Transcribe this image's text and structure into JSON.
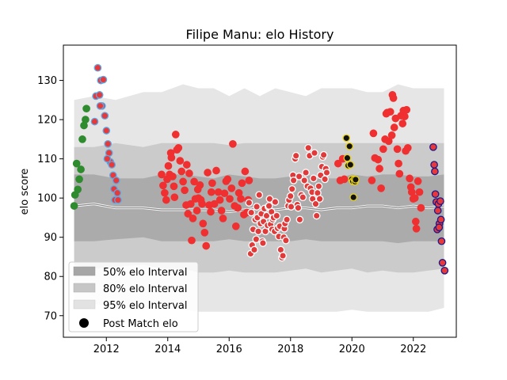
{
  "chart_data": {
    "type": "scatter",
    "title": "Filipe Manu: elo History",
    "xlabel": "",
    "ylabel": "elo score",
    "xlim": [
      2010.6,
      2023.4
    ],
    "ylim": [
      64.5,
      139
    ],
    "x_ticks": [
      2012,
      2014,
      2016,
      2018,
      2020,
      2022
    ],
    "y_ticks": [
      70,
      80,
      90,
      100,
      110,
      120,
      130
    ],
    "grid": false,
    "legend_position": "lower-left",
    "legend": [
      {
        "label": "50% elo Interval",
        "color": "#a6a6a6"
      },
      {
        "label": "80% elo Interval",
        "color": "#c6c6c6"
      },
      {
        "label": "95% elo Interval",
        "color": "#e2e2e2"
      },
      {
        "label": "Post Match elo",
        "color": "#000000"
      }
    ],
    "intervals": {
      "x": [
        2010.95,
        2011.6,
        2012.3,
        2013.2,
        2013.8,
        2014.5,
        2015.0,
        2015.5,
        2016.0,
        2016.5,
        2017.0,
        2017.5,
        2018.0,
        2018.5,
        2019.0,
        2019.5,
        2020.0,
        2020.5,
        2021.0,
        2021.5,
        2022.0,
        2022.5,
        2023.0
      ],
      "median": [
        98,
        98.5,
        97.5,
        97.5,
        97,
        97,
        97,
        97,
        96.5,
        97,
        97.5,
        97,
        97.5,
        97.5,
        97,
        97.5,
        97.5,
        98,
        98,
        97.5,
        98,
        97.5,
        98
      ],
      "p50_low": [
        89,
        89,
        89.5,
        90,
        89,
        89,
        89,
        89,
        89.5,
        89,
        89,
        89,
        89,
        89.5,
        89,
        89,
        89,
        89,
        89,
        88.5,
        89,
        89,
        89
      ],
      "p50_high": [
        106,
        106,
        105,
        105,
        106,
        106,
        105.5,
        105,
        106,
        105.5,
        105,
        105,
        105.5,
        106,
        105,
        105,
        106,
        105.5,
        106,
        106,
        105.5,
        105.5,
        106
      ],
      "p80_low": [
        83,
        82,
        82.5,
        83,
        82,
        82,
        81,
        81,
        81.5,
        81,
        81,
        81,
        81.5,
        82,
        81,
        81.5,
        82,
        81,
        81.5,
        81,
        81,
        81.5,
        82
      ],
      "p80_high": [
        113,
        113,
        114,
        113,
        114,
        114,
        114,
        114,
        113.5,
        114,
        114,
        114,
        114,
        114,
        114,
        114,
        114,
        114,
        114,
        114,
        114,
        114,
        114
      ],
      "p95_low": [
        74,
        73,
        72,
        72,
        72,
        71.5,
        71,
        71,
        71,
        71,
        71,
        71,
        71,
        71,
        71,
        71,
        71.5,
        71,
        71,
        71,
        71,
        71,
        72
      ],
      "p95_high": [
        125,
        126,
        125,
        127,
        127,
        129,
        128,
        128,
        126,
        128,
        126,
        128,
        127,
        126,
        128,
        128,
        128,
        127,
        127,
        129,
        128,
        128,
        128
      ]
    },
    "series": [
      {
        "color": "#2e8b2e",
        "edge": "#2e8b2e",
        "points": [
          [
            2010.95,
            98
          ],
          [
            2010.98,
            100.8
          ],
          [
            2011.03,
            108.8
          ],
          [
            2011.07,
            102.2
          ],
          [
            2011.12,
            104.8
          ],
          [
            2011.17,
            107.3
          ],
          [
            2011.22,
            115
          ],
          [
            2011.27,
            118.5
          ],
          [
            2011.32,
            120
          ],
          [
            2011.35,
            122.8
          ]
        ]
      },
      {
        "color": "#e8383a",
        "edge": "#5aa9e6",
        "points": [
          [
            2011.62,
            119.5
          ],
          [
            2011.66,
            126
          ],
          [
            2011.72,
            133.2
          ],
          [
            2011.78,
            126.3
          ],
          [
            2011.82,
            130
          ],
          [
            2011.86,
            123.5
          ],
          [
            2011.9,
            130.2
          ],
          [
            2011.95,
            121
          ],
          [
            2012.0,
            117.2
          ],
          [
            2012.05,
            113.8
          ],
          [
            2012.09,
            111.5
          ],
          [
            2012.13,
            109.2
          ],
          [
            2012.18,
            108.5
          ],
          [
            2012.22,
            105.8
          ],
          [
            2012.25,
            102.3
          ],
          [
            2012.28,
            99.5
          ],
          [
            2012.32,
            104.5
          ],
          [
            2012.36,
            101.3
          ],
          [
            2012.38,
            99.5
          ],
          [
            2011.8,
            123.5
          ],
          [
            2012.03,
            110
          ]
        ]
      },
      {
        "color": "#f03030",
        "edge": "#f03030",
        "points": [
          [
            2013.8,
            106
          ],
          [
            2013.85,
            103.2
          ],
          [
            2013.9,
            101.3
          ],
          [
            2013.95,
            99.5
          ],
          [
            2013.98,
            104.8
          ],
          [
            2014.02,
            108.2
          ],
          [
            2014.06,
            106
          ],
          [
            2014.1,
            111.5
          ],
          [
            2014.12,
            110.3
          ],
          [
            2014.16,
            105.5
          ],
          [
            2014.2,
            103
          ],
          [
            2014.22,
            100.2
          ],
          [
            2014.26,
            116.2
          ],
          [
            2014.3,
            112.3
          ],
          [
            2014.35,
            112.8
          ],
          [
            2014.4,
            109.5
          ],
          [
            2014.45,
            106.8
          ],
          [
            2014.5,
            104.2
          ],
          [
            2014.55,
            102
          ],
          [
            2014.6,
            98.2
          ],
          [
            2014.62,
            108.5
          ],
          [
            2014.66,
            96
          ],
          [
            2014.7,
            106.3
          ],
          [
            2014.75,
            98.5
          ],
          [
            2014.78,
            89.2
          ],
          [
            2014.82,
            94.8
          ],
          [
            2014.86,
            104.2
          ],
          [
            2014.9,
            99.8
          ],
          [
            2014.95,
            96.8
          ],
          [
            2015.0,
            100
          ],
          [
            2015.05,
            103.3
          ],
          [
            2015.08,
            99.5
          ],
          [
            2015.12,
            98.5
          ],
          [
            2015.15,
            93.5
          ],
          [
            2015.2,
            91.2
          ],
          [
            2015.25,
            87.8
          ],
          [
            2015.3,
            106.5
          ],
          [
            2015.35,
            98.2
          ],
          [
            2015.4,
            96.5
          ],
          [
            2015.45,
            103.8
          ],
          [
            2015.52,
            98.5
          ],
          [
            2015.58,
            107
          ],
          [
            2015.65,
            101.5
          ],
          [
            2015.7,
            99.5
          ],
          [
            2015.75,
            96.8
          ],
          [
            2015.8,
            94.8
          ],
          [
            2015.85,
            101.2
          ],
          [
            2015.9,
            104.3
          ],
          [
            2015.95,
            104.8
          ],
          [
            2016.02,
            99.8
          ],
          [
            2016.08,
            102.5
          ],
          [
            2016.12,
            113.8
          ],
          [
            2016.18,
            98
          ],
          [
            2016.22,
            92.8
          ],
          [
            2016.28,
            97.5
          ],
          [
            2016.32,
            101.3
          ],
          [
            2016.38,
            99.8
          ],
          [
            2016.42,
            103.8
          ],
          [
            2016.48,
            95.8
          ],
          [
            2016.52,
            106.8
          ],
          [
            2016.58,
            96.3
          ],
          [
            2016.62,
            99.5
          ],
          [
            2016.65,
            104.5
          ],
          [
            2014.98,
            102.2
          ],
          [
            2015.42,
            101.5
          ]
        ]
      },
      {
        "color": "#e03a3a",
        "edge": "#ffffff",
        "points": [
          [
            2016.65,
            98.8
          ],
          [
            2016.7,
            85.8
          ],
          [
            2016.72,
            96.3
          ],
          [
            2016.75,
            88
          ],
          [
            2016.78,
            92
          ],
          [
            2016.82,
            86.8
          ],
          [
            2016.85,
            94.5
          ],
          [
            2016.88,
            89.5
          ],
          [
            2016.9,
            97.8
          ],
          [
            2016.92,
            95
          ],
          [
            2016.95,
            91.5
          ],
          [
            2016.98,
            100.8
          ],
          [
            2017.02,
            93.5
          ],
          [
            2017.05,
            96
          ],
          [
            2017.08,
            89
          ],
          [
            2017.12,
            94
          ],
          [
            2017.15,
            97.3
          ],
          [
            2017.18,
            91.5
          ],
          [
            2017.22,
            95.5
          ],
          [
            2017.25,
            93
          ],
          [
            2017.28,
            97.8
          ],
          [
            2017.32,
            99.8
          ],
          [
            2017.35,
            93.3
          ],
          [
            2017.38,
            96.5
          ],
          [
            2017.4,
            92
          ],
          [
            2017.42,
            94.5
          ],
          [
            2017.45,
            95
          ],
          [
            2017.48,
            91.5
          ],
          [
            2017.5,
            99
          ],
          [
            2017.55,
            95.5
          ],
          [
            2017.58,
            92.3
          ],
          [
            2017.62,
            90.2
          ],
          [
            2017.65,
            92.8
          ],
          [
            2017.68,
            86.8
          ],
          [
            2017.72,
            84.8
          ],
          [
            2017.75,
            85.3
          ],
          [
            2017.78,
            90
          ],
          [
            2017.8,
            92.2
          ],
          [
            2017.82,
            93.5
          ],
          [
            2017.85,
            89.2
          ],
          [
            2017.88,
            94.5
          ],
          [
            2017.92,
            98
          ],
          [
            2017.95,
            99.5
          ],
          [
            2018.0,
            100.5
          ],
          [
            2018.02,
            97.8
          ],
          [
            2018.05,
            102.3
          ],
          [
            2018.08,
            105.8
          ],
          [
            2018.1,
            104.5
          ],
          [
            2018.15,
            110
          ],
          [
            2018.18,
            110.8
          ],
          [
            2018.22,
            98.3
          ],
          [
            2018.25,
            97.5
          ],
          [
            2018.3,
            94.5
          ],
          [
            2018.35,
            100.8
          ],
          [
            2018.4,
            100.2
          ],
          [
            2018.45,
            104.5
          ],
          [
            2018.5,
            106.5
          ],
          [
            2018.55,
            103
          ],
          [
            2018.58,
            112.8
          ],
          [
            2018.62,
            110.8
          ],
          [
            2018.65,
            102.5
          ],
          [
            2018.7,
            101.5
          ],
          [
            2018.72,
            99.8
          ],
          [
            2018.75,
            105
          ],
          [
            2018.78,
            111.5
          ],
          [
            2018.82,
            98.5
          ],
          [
            2018.85,
            95.5
          ],
          [
            2018.88,
            101.3
          ],
          [
            2018.92,
            103
          ],
          [
            2018.95,
            99.8
          ],
          [
            2018.98,
            105.8
          ],
          [
            2019.02,
            108
          ],
          [
            2019.05,
            110.5
          ],
          [
            2019.08,
            111
          ],
          [
            2019.12,
            104.8
          ],
          [
            2019.15,
            107.5
          ],
          [
            2019.18,
            106.5
          ],
          [
            2017.1,
            88.5
          ],
          [
            2017.3,
            98
          ],
          [
            2018.28,
            105.5
          ]
        ]
      },
      {
        "color": "#f03030",
        "edge": "#f03030",
        "points": [
          [
            2019.55,
            108.8
          ],
          [
            2019.62,
            104.5
          ],
          [
            2019.7,
            110
          ],
          [
            2019.75,
            104.8
          ],
          [
            2020.65,
            104.5
          ],
          [
            2020.7,
            116.5
          ],
          [
            2020.75,
            110.2
          ],
          [
            2020.85,
            109.8
          ],
          [
            2020.9,
            107.5
          ],
          [
            2020.95,
            102.5
          ],
          [
            2021.02,
            112.5
          ],
          [
            2021.08,
            115
          ],
          [
            2021.12,
            121.5
          ],
          [
            2021.15,
            121.8
          ],
          [
            2021.2,
            114.5
          ],
          [
            2021.25,
            122
          ],
          [
            2021.3,
            116
          ],
          [
            2021.32,
            126.3
          ],
          [
            2021.35,
            125.5
          ],
          [
            2021.38,
            118
          ],
          [
            2021.42,
            120.3
          ],
          [
            2021.48,
            112.5
          ],
          [
            2021.52,
            108.8
          ],
          [
            2021.55,
            106.2
          ],
          [
            2021.6,
            121
          ],
          [
            2021.65,
            119
          ],
          [
            2021.68,
            122.3
          ],
          [
            2021.72,
            120.8
          ],
          [
            2021.75,
            112
          ],
          [
            2021.78,
            122.5
          ],
          [
            2021.82,
            112.8
          ],
          [
            2021.88,
            105
          ],
          [
            2021.92,
            102.8
          ],
          [
            2021.95,
            101.5
          ],
          [
            2022.0,
            99.8
          ],
          [
            2022.05,
            100
          ],
          [
            2022.08,
            94
          ],
          [
            2022.1,
            92.2
          ],
          [
            2022.15,
            104.3
          ],
          [
            2022.2,
            101.5
          ],
          [
            2022.25,
            97.5
          ]
        ]
      },
      {
        "color": "#111111",
        "edge": "#e8d21a",
        "points": [
          [
            2019.82,
            115.3
          ],
          [
            2019.85,
            110.2
          ],
          [
            2019.88,
            108.3
          ],
          [
            2019.92,
            113.2
          ],
          [
            2019.95,
            108.5
          ],
          [
            2020.0,
            104.8
          ],
          [
            2020.03,
            104.3
          ],
          [
            2020.08,
            104.8
          ],
          [
            2020.1,
            104.2
          ],
          [
            2020.12,
            104.7
          ],
          [
            2020.05,
            100.2
          ]
        ]
      },
      {
        "color": "#e8383a",
        "edge": "#1a1a8c",
        "points": [
          [
            2022.65,
            113
          ],
          [
            2022.68,
            108.5
          ],
          [
            2022.7,
            106.8
          ],
          [
            2022.72,
            101
          ],
          [
            2022.75,
            99
          ],
          [
            2022.78,
            92
          ],
          [
            2022.8,
            96.8
          ],
          [
            2022.82,
            98.5
          ],
          [
            2022.85,
            93.5
          ],
          [
            2022.88,
            99.2
          ],
          [
            2022.9,
            94.5
          ],
          [
            2022.92,
            89
          ],
          [
            2022.95,
            83.5
          ],
          [
            2023.02,
            81.5
          ],
          [
            2022.84,
            92.5
          ]
        ]
      }
    ]
  }
}
